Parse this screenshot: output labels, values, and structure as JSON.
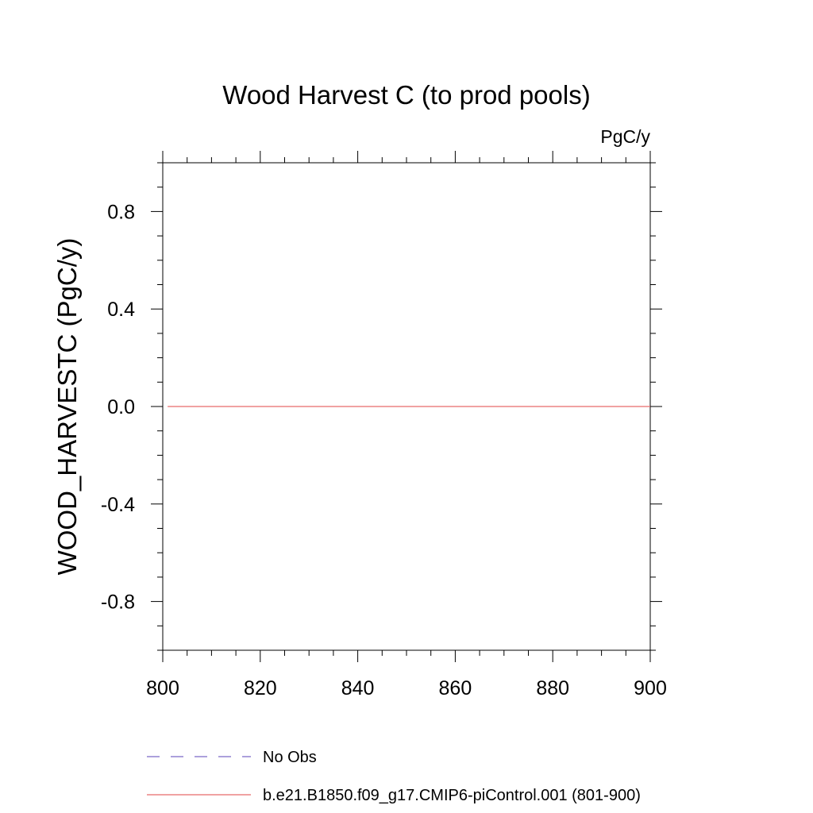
{
  "chart_data": {
    "type": "line",
    "title": "Wood Harvest C (to prod pools)",
    "units": "PgC/y",
    "ylabel": "WOOD_HARVESTC  (PgC/y)",
    "xlabel": "",
    "xlim": [
      800,
      900
    ],
    "ylim": [
      -1.0,
      1.0
    ],
    "x_ticks": [
      800,
      820,
      840,
      860,
      880,
      900
    ],
    "x_tick_labels": [
      "800",
      "820",
      "840",
      "860",
      "880",
      "900"
    ],
    "y_ticks": [
      0.8,
      0.4,
      0.0,
      -0.4,
      -0.8
    ],
    "y_tick_labels": [
      "0.8",
      "0.4",
      "0.0",
      "-0.4",
      "-0.8"
    ],
    "grid": false,
    "legend_position": "bottom",
    "series": [
      {
        "name": "No Obs",
        "color": "#7b68c8",
        "style": "dashed",
        "x": [],
        "y": []
      },
      {
        "name": "b.e21.B1850.f09_g17.CMIP6-piControl.001 (801-900)",
        "color": "#e86a6a",
        "style": "solid",
        "x": [
          801,
          900
        ],
        "y": [
          0.0,
          0.0
        ]
      }
    ]
  }
}
